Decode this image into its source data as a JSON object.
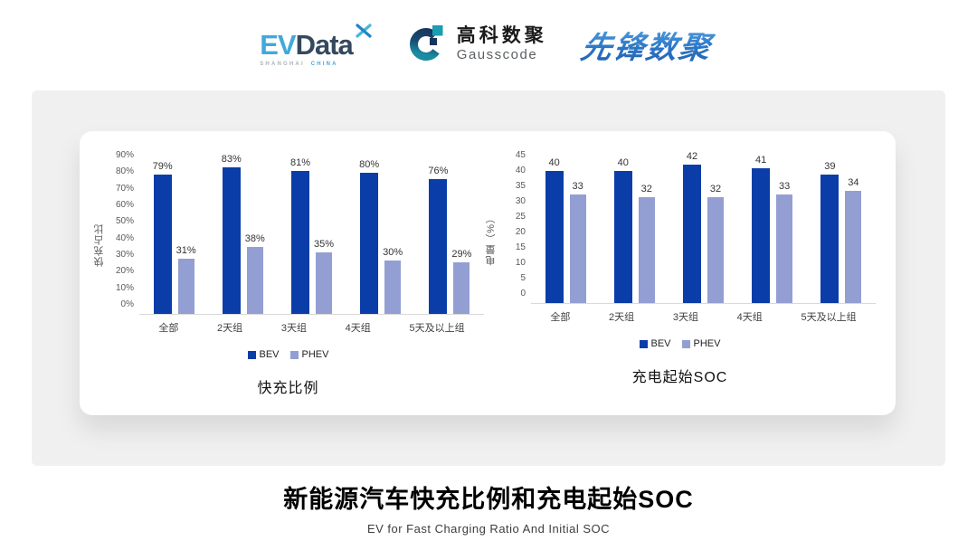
{
  "header": {
    "evdata": {
      "part1": "EV",
      "part2": "Data",
      "sub_left": "SHANGHAI",
      "sub_right": "CHINA"
    },
    "gausscode": {
      "name_cn": "高科数聚",
      "name_en": "Gausscode"
    },
    "pioneer": {
      "text": "先锋数聚"
    }
  },
  "colors": {
    "bev": "#0b3da8",
    "phev": "#939fd3",
    "evdata_blue": "#41a9db",
    "evdata_navy": "#35495e",
    "gausscode_teal": "#1b9eb0",
    "gausscode_navy": "#16355c",
    "pioneer_blue": "#2d77c6",
    "panel_gray": "#f0f0f0"
  },
  "chart_data": [
    {
      "type": "bar",
      "title": "快充比例",
      "ylabel": "快充占比",
      "xlabel": "",
      "categories": [
        "全部",
        "2天组",
        "3天组",
        "4天组",
        "5天及以上组"
      ],
      "series": [
        {
          "name": "BEV",
          "values": [
            79,
            83,
            81,
            80,
            76
          ]
        },
        {
          "name": "PHEV",
          "values": [
            31,
            38,
            35,
            30,
            29
          ]
        }
      ],
      "ylim": [
        0,
        90
      ],
      "yticks": [
        "0%",
        "10%",
        "20%",
        "30%",
        "40%",
        "50%",
        "60%",
        "70%",
        "80%",
        "90%"
      ],
      "data_label_suffix": "%",
      "legend": [
        "BEV",
        "PHEV"
      ],
      "legend_position": "bottom",
      "grid": false
    },
    {
      "type": "bar",
      "title": "充电起始SOC",
      "ylabel": "电量（%）",
      "xlabel": "",
      "categories": [
        "全部",
        "2天组",
        "3天组",
        "4天组",
        "5天及以上组"
      ],
      "series": [
        {
          "name": "BEV",
          "values": [
            40,
            40,
            42,
            41,
            39
          ]
        },
        {
          "name": "PHEV",
          "values": [
            33,
            32,
            32,
            33,
            34
          ]
        }
      ],
      "ylim": [
        0,
        45
      ],
      "yticks": [
        "0",
        "5",
        "10",
        "15",
        "20",
        "25",
        "30",
        "35",
        "40",
        "45"
      ],
      "data_label_suffix": "",
      "legend": [
        "BEV",
        "PHEV"
      ],
      "legend_position": "bottom",
      "grid": false
    }
  ],
  "footer": {
    "title": "新能源汽车快充比例和充电起始SOC",
    "subtitle": "EV for Fast Charging Ratio And Initial SOC"
  }
}
